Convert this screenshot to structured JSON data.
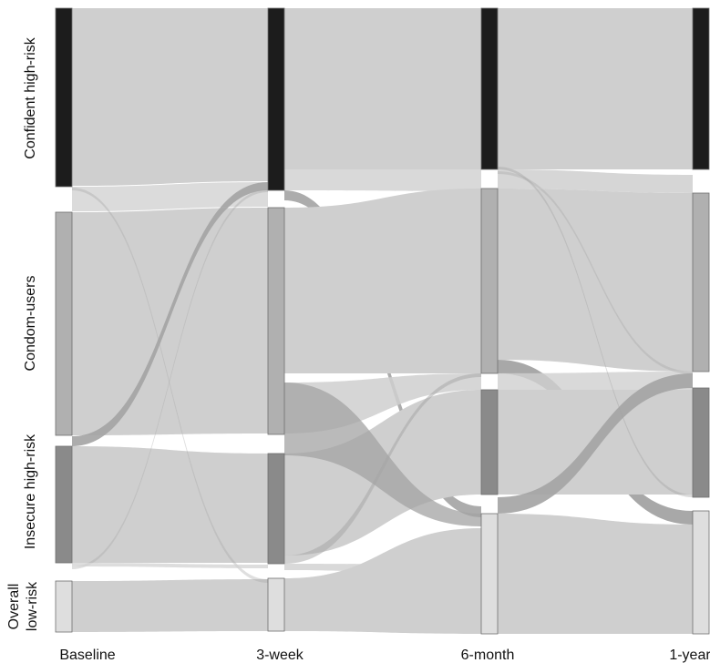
{
  "diagram": {
    "type": "sankey",
    "time_points": [
      "Baseline",
      "3-week",
      "6-month",
      "1-year"
    ],
    "categories": [
      "Confident high-risk",
      "Condom-users",
      "Insecure high-risk",
      "Overall low-risk"
    ],
    "category_labels": [
      {
        "lines": [
          "Confident high-risk"
        ]
      },
      {
        "lines": [
          "Condom-users"
        ]
      },
      {
        "lines": [
          "Insecure high-risk"
        ]
      },
      {
        "lines": [
          "Overall",
          "low-risk"
        ]
      }
    ],
    "colors": {
      "Confident high-risk": "#1c1c1c",
      "Condom-users": "#b0b0b0",
      "Insecure high-risk": "#8a8a8a",
      "Overall low-risk": "#dedede",
      "flow_main": "#cfcfcf",
      "flow_cross": "#a3a3a3",
      "background": "#ffffff"
    },
    "flows": [
      {
        "from_time": "Baseline",
        "from": "Confident high-risk",
        "to": "Confident high-risk",
        "size": "large"
      },
      {
        "from_time": "Baseline",
        "from": "Condom-users",
        "to": "Condom-users",
        "size": "large"
      },
      {
        "from_time": "Baseline",
        "from": "Condom-users",
        "to": "Confident high-risk",
        "size": "small"
      },
      {
        "from_time": "Baseline",
        "from": "Insecure high-risk",
        "to": "Insecure high-risk",
        "size": "large"
      },
      {
        "from_time": "Baseline",
        "from": "Overall low-risk",
        "to": "Overall low-risk",
        "size": "large"
      },
      {
        "from_time": "3-week",
        "from": "Confident high-risk",
        "to": "Confident high-risk",
        "size": "large"
      },
      {
        "from_time": "3-week",
        "from": "Confident high-risk",
        "to": "Overall low-risk",
        "size": "small"
      },
      {
        "from_time": "3-week",
        "from": "Condom-users",
        "to": "Condom-users",
        "size": "large"
      },
      {
        "from_time": "3-week",
        "from": "Insecure high-risk",
        "to": "Insecure high-risk",
        "size": "large"
      },
      {
        "from_time": "3-week",
        "from": "Insecure high-risk",
        "to": "Overall low-risk",
        "size": "medium"
      },
      {
        "from_time": "3-week",
        "from": "Overall low-risk",
        "to": "Overall low-risk",
        "size": "large"
      },
      {
        "from_time": "6-month",
        "from": "Confident high-risk",
        "to": "Confident high-risk",
        "size": "large"
      },
      {
        "from_time": "6-month",
        "from": "Condom-users",
        "to": "Condom-users",
        "size": "large"
      },
      {
        "from_time": "6-month",
        "from": "Condom-users",
        "to": "Overall low-risk",
        "size": "small"
      },
      {
        "from_time": "6-month",
        "from": "Insecure high-risk",
        "to": "Insecure high-risk",
        "size": "large"
      },
      {
        "from_time": "6-month",
        "from": "Insecure high-risk",
        "to": "Condom-users",
        "size": "small"
      },
      {
        "from_time": "6-month",
        "from": "Overall low-risk",
        "to": "Overall low-risk",
        "size": "large"
      }
    ]
  }
}
